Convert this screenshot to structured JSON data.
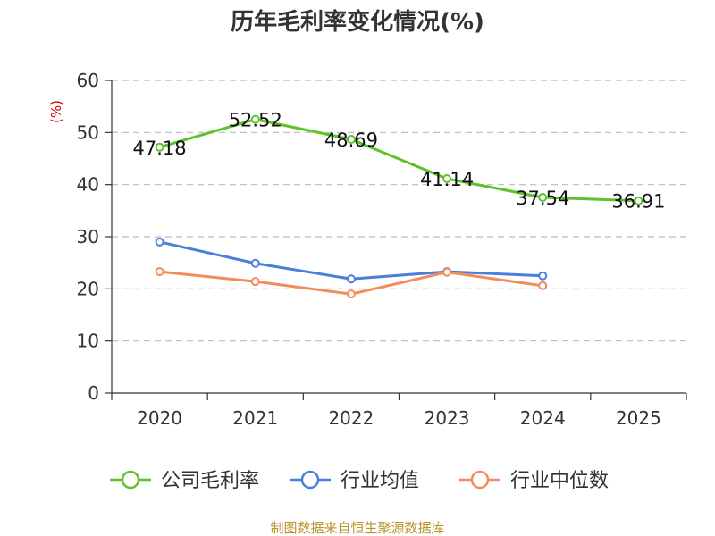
{
  "colors": {
    "company": "#5dc22b",
    "industry_avg": "#4a7fdc",
    "industry_median": "#f28c5a",
    "ylabel": "#d40000",
    "source": "#b8942a",
    "grid": "#bbbbbb",
    "axis": "#333333"
  },
  "chart_data": {
    "type": "line",
    "title": "历年毛利率变化情况(%)",
    "ylabel": "(%)",
    "xlabel": "",
    "ylim": [
      0,
      60
    ],
    "yticks": [
      "0",
      "10",
      "20",
      "30",
      "40",
      "50",
      "60"
    ],
    "categories": [
      "2020",
      "2021",
      "2022",
      "2023",
      "2024",
      "2025"
    ],
    "grid": true,
    "legend_position": "bottom",
    "series": [
      {
        "name": "公司毛利率",
        "values": [
          47.18,
          52.52,
          48.69,
          41.14,
          37.54,
          36.91
        ],
        "data_labels": [
          "47.18",
          "52.52",
          "48.69",
          "41.14",
          "37.54",
          "36.91"
        ]
      },
      {
        "name": "行业均值",
        "values": [
          29.0,
          24.9,
          21.9,
          23.3,
          22.5,
          null
        ]
      },
      {
        "name": "行业中位数",
        "values": [
          23.3,
          21.4,
          19.0,
          23.2,
          20.6,
          null
        ]
      }
    ]
  },
  "source_text": "制图数据来自恒生聚源数据库"
}
